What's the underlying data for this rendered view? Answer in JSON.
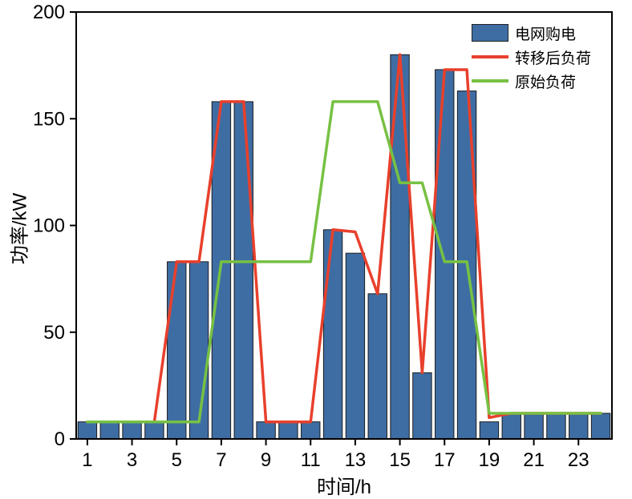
{
  "chart_data": {
    "type": "bar+line",
    "title": "",
    "xlabel": "时间/h",
    "ylabel": "功率/kW",
    "xlim": [
      0.5,
      24.5
    ],
    "ylim": [
      0,
      200
    ],
    "xticks": [
      1,
      3,
      5,
      7,
      9,
      11,
      13,
      15,
      17,
      19,
      21,
      23
    ],
    "yticks": [
      0,
      50,
      100,
      150,
      200
    ],
    "grid": "off",
    "legend_position": "top-right-inside",
    "x": [
      1,
      2,
      3,
      4,
      5,
      6,
      7,
      8,
      9,
      10,
      11,
      12,
      13,
      14,
      15,
      16,
      17,
      18,
      19,
      20,
      21,
      22,
      23,
      24
    ],
    "series": [
      {
        "name": "电网购电",
        "type": "bar",
        "color": "#3E6DA4",
        "values": [
          8,
          8,
          8,
          8,
          83,
          83,
          158,
          158,
          8,
          8,
          8,
          98,
          87,
          68,
          180,
          31,
          173,
          163,
          8,
          12,
          12,
          12,
          12,
          12
        ]
      },
      {
        "name": "转移后负荷",
        "type": "line",
        "color": "#E8402C",
        "values": [
          8,
          8,
          8,
          8,
          83,
          83,
          158,
          158,
          8,
          8,
          8,
          98,
          97,
          68,
          180,
          31,
          173,
          173,
          10,
          12,
          12,
          12,
          12,
          12
        ]
      },
      {
        "name": "原始负荷",
        "type": "line",
        "color": "#77C143",
        "values": [
          8,
          8,
          8,
          8,
          8,
          8,
          83,
          83,
          83,
          83,
          83,
          158,
          158,
          158,
          120,
          120,
          83,
          83,
          12,
          12,
          12,
          12,
          12,
          12
        ]
      }
    ]
  }
}
